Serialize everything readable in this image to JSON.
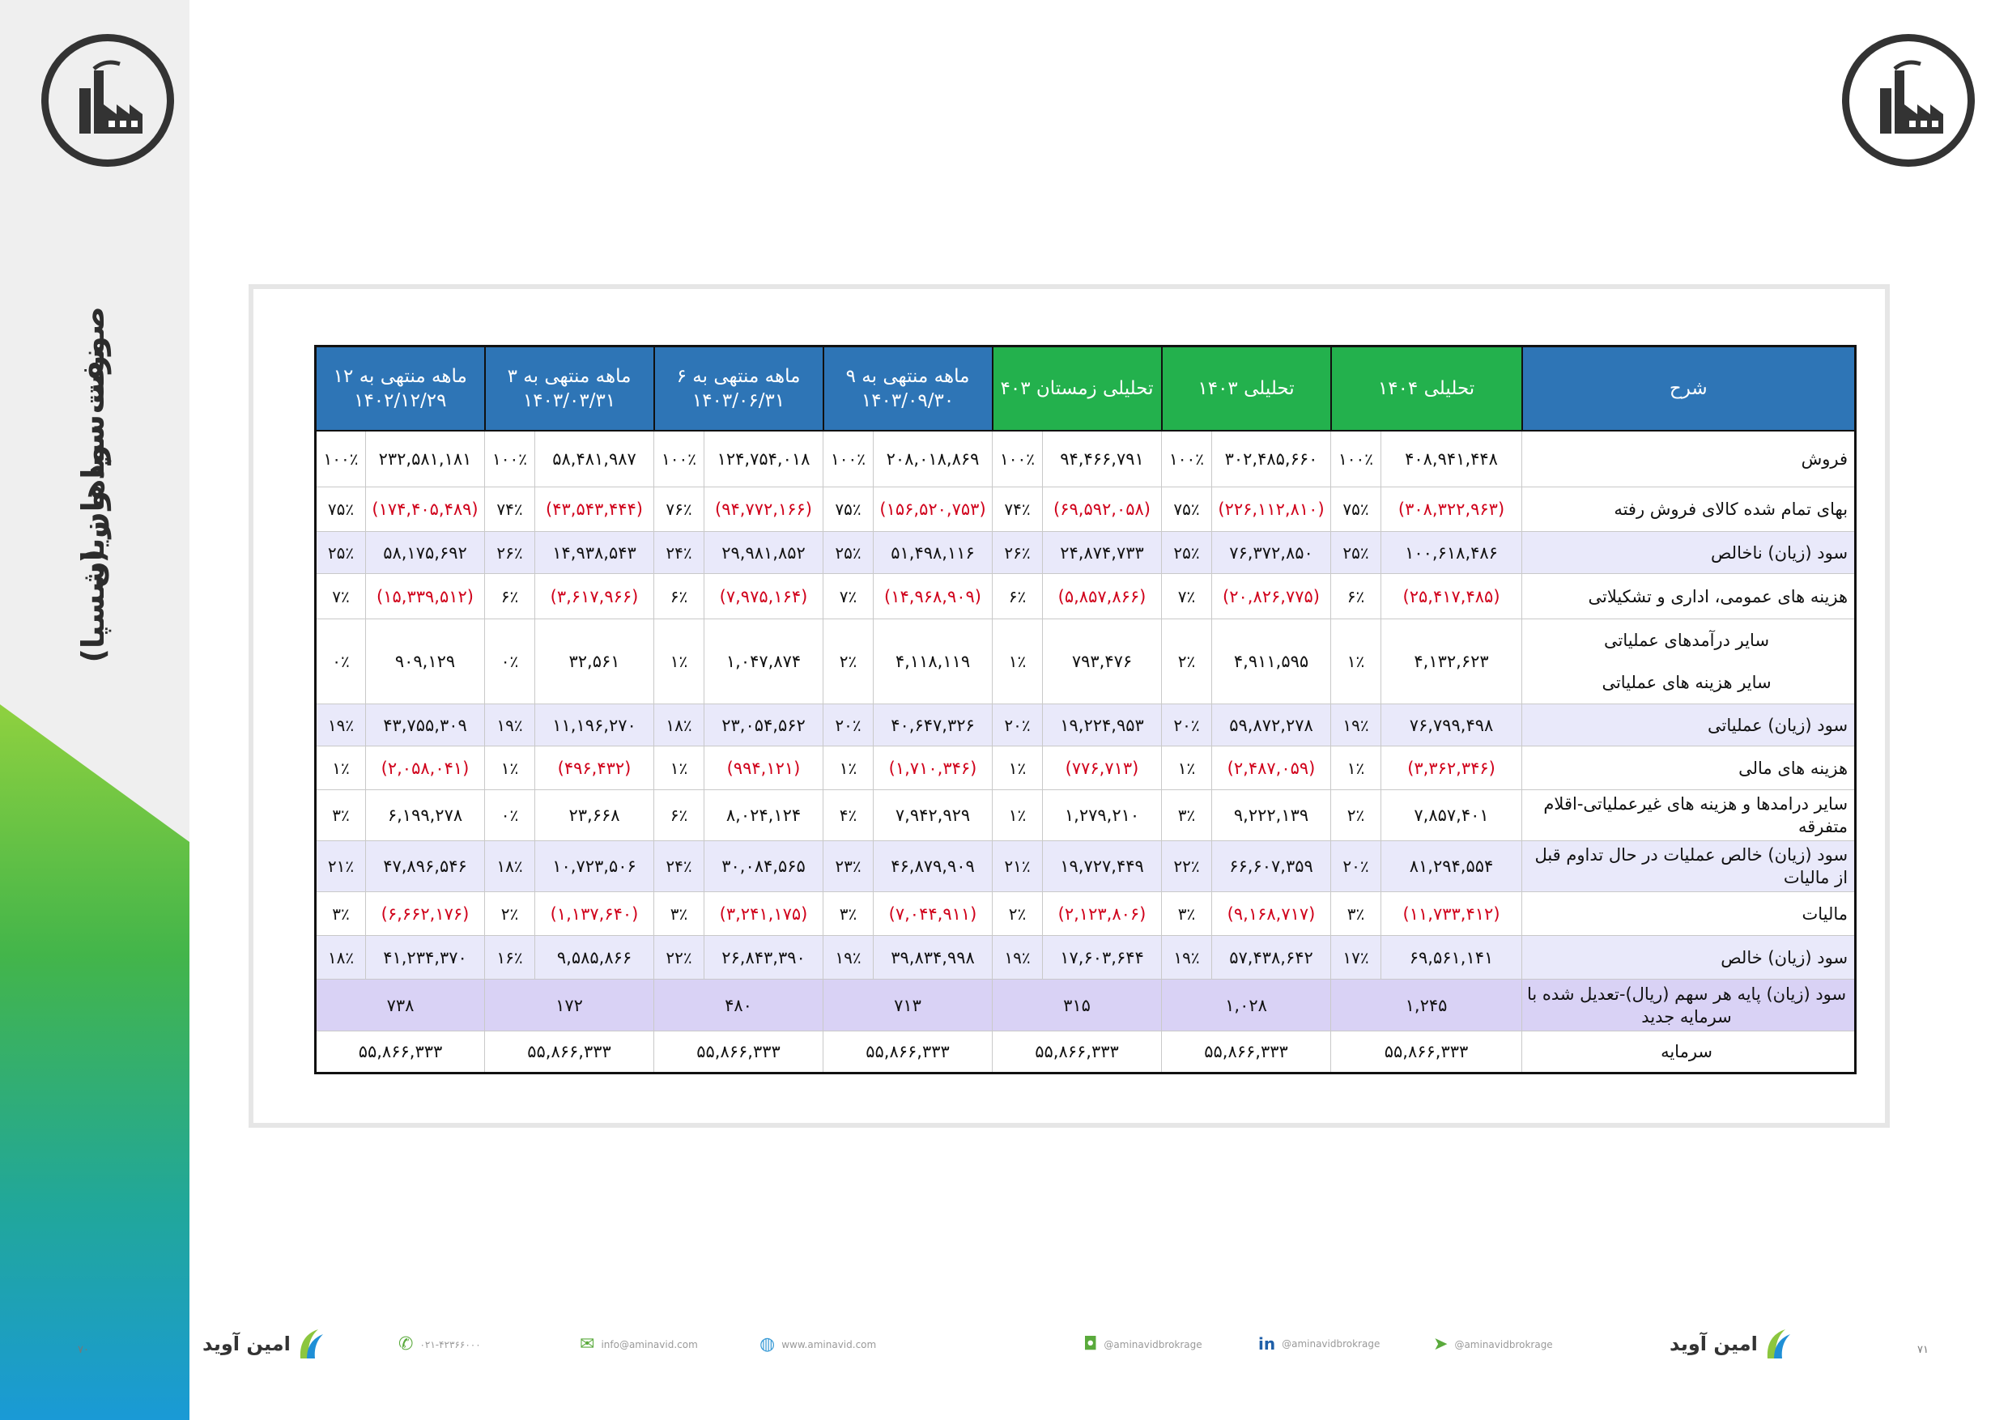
{
  "sidebar": {
    "title_line1": "صورت سود و زیان",
    "title_line2": "نفت سپاهان (شسپا)"
  },
  "colors": {
    "blue_header": "#2e75b6",
    "green_header": "#23b14d",
    "negative": "#d0021b"
  },
  "table": {
    "headers": {
      "desc": "شرح",
      "c1": "تحلیلی ۱۴۰۴",
      "c2": "تحلیلی ۱۴۰۳",
      "c3": "تحلیلی زمستان ۴۰۳",
      "c4": "۹ ماهه منتهی به ۱۴۰۳/۰۹/۳۰",
      "c5": "۶ ماهه منتهی به ۱۴۰۳/۰۶/۳۱",
      "c6": "۳ ماهه منتهی به ۱۴۰۳/۰۳/۳۱",
      "c7": "۱۲ ماهه منتهی به ۱۴۰۲/۱۲/۲۹"
    },
    "rows": {
      "r1": {
        "label": "فروش",
        "c1v": "۴۰۸,۹۴۱,۴۴۸",
        "c1p": "۱۰۰٪",
        "c2v": "۳۰۲,۴۸۵,۶۶۰",
        "c2p": "۱۰۰٪",
        "c3v": "۹۴,۴۶۶,۷۹۱",
        "c3p": "۱۰۰٪",
        "c4v": "۲۰۸,۰۱۸,۸۶۹",
        "c4p": "۱۰۰٪",
        "c5v": "۱۲۴,۷۵۴,۰۱۸",
        "c5p": "۱۰۰٪",
        "c6v": "۵۸,۴۸۱,۹۸۷",
        "c6p": "۱۰۰٪",
        "c7v": "۲۳۲,۵۸۱,۱۸۱",
        "c7p": "۱۰۰٪"
      },
      "r2": {
        "label": "بهای تمام شده کالای فروش رفته",
        "c1v": "(۳۰۸,۳۲۲,۹۶۳)",
        "c1p": "۷۵٪",
        "c2v": "(۲۲۶,۱۱۲,۸۱۰)",
        "c2p": "۷۵٪",
        "c3v": "(۶۹,۵۹۲,۰۵۸)",
        "c3p": "۷۴٪",
        "c4v": "(۱۵۶,۵۲۰,۷۵۳)",
        "c4p": "۷۵٪",
        "c5v": "(۹۴,۷۷۲,۱۶۶)",
        "c5p": "۷۶٪",
        "c6v": "(۴۳,۵۴۳,۴۴۴)",
        "c6p": "۷۴٪",
        "c7v": "(۱۷۴,۴۰۵,۴۸۹)",
        "c7p": "۷۵٪"
      },
      "r3": {
        "label": "سود (زیان) ناخالص",
        "c1v": "۱۰۰,۶۱۸,۴۸۶",
        "c1p": "۲۵٪",
        "c2v": "۷۶,۳۷۲,۸۵۰",
        "c2p": "۲۵٪",
        "c3v": "۲۴,۸۷۴,۷۳۳",
        "c3p": "۲۶٪",
        "c4v": "۵۱,۴۹۸,۱۱۶",
        "c4p": "۲۵٪",
        "c5v": "۲۹,۹۸۱,۸۵۲",
        "c5p": "۲۴٪",
        "c6v": "۱۴,۹۳۸,۵۴۳",
        "c6p": "۲۶٪",
        "c7v": "۵۸,۱۷۵,۶۹۲",
        "c7p": "۲۵٪"
      },
      "r4": {
        "label": "هزینه های عمومی، اداری و تشکیلاتی",
        "c1v": "(۲۵,۴۱۷,۴۸۵)",
        "c1p": "۶٪",
        "c2v": "(۲۰,۸۲۶,۷۷۵)",
        "c2p": "۷٪",
        "c3v": "(۵,۸۵۷,۸۶۶)",
        "c3p": "۶٪",
        "c4v": "(۱۴,۹۶۸,۹۰۹)",
        "c4p": "۷٪",
        "c5v": "(۷,۹۷۵,۱۶۴)",
        "c5p": "۶٪",
        "c6v": "(۳,۶۱۷,۹۶۶)",
        "c6p": "۶٪",
        "c7v": "(۱۵,۳۳۹,۵۱۲)",
        "c7p": "۷٪"
      },
      "r5": {
        "label1": "سایر درآمدهای عملیاتی",
        "label2": "سایر هزینه های عملیاتی",
        "c1v": "۴,۱۳۲,۶۲۳",
        "c1p": "۱٪",
        "c2v": "۴,۹۱۱,۵۹۵",
        "c2p": "۲٪",
        "c3v": "۷۹۳,۴۷۶",
        "c3p": "۱٪",
        "c4v": "۴,۱۱۸,۱۱۹",
        "c4p": "۲٪",
        "c5v": "۱,۰۴۷,۸۷۴",
        "c5p": "۱٪",
        "c6v": "۳۲,۵۶۱",
        "c6p": "۰٪",
        "c7v": "۹۰۹,۱۲۹",
        "c7p": "۰٪"
      },
      "r6": {
        "label": "سود (زیان) عملیاتی",
        "c1v": "۷۶,۷۹۹,۴۹۸",
        "c1p": "۱۹٪",
        "c2v": "۵۹,۸۷۲,۲۷۸",
        "c2p": "۲۰٪",
        "c3v": "۱۹,۲۲۴,۹۵۳",
        "c3p": "۲۰٪",
        "c4v": "۴۰,۶۴۷,۳۲۶",
        "c4p": "۲۰٪",
        "c5v": "۲۳,۰۵۴,۵۶۲",
        "c5p": "۱۸٪",
        "c6v": "۱۱,۱۹۶,۲۷۰",
        "c6p": "۱۹٪",
        "c7v": "۴۳,۷۵۵,۳۰۹",
        "c7p": "۱۹٪"
      },
      "r7": {
        "label": "هزینه های مالی",
        "c1v": "(۳,۳۶۲,۳۴۶)",
        "c1p": "۱٪",
        "c2v": "(۲,۴۸۷,۰۵۹)",
        "c2p": "۱٪",
        "c3v": "(۷۷۶,۷۱۳)",
        "c3p": "۱٪",
        "c4v": "(۱,۷۱۰,۳۴۶)",
        "c4p": "۱٪",
        "c5v": "(۹۹۴,۱۲۱)",
        "c5p": "۱٪",
        "c6v": "(۴۹۶,۴۳۲)",
        "c6p": "۱٪",
        "c7v": "(۲,۰۵۸,۰۴۱)",
        "c7p": "۱٪"
      },
      "r8": {
        "label": "سایر درامدها و هزینه های غیرعملیاتی-اقلام متفرقه",
        "c1v": "۷,۸۵۷,۴۰۱",
        "c1p": "۲٪",
        "c2v": "۹,۲۲۲,۱۳۹",
        "c2p": "۳٪",
        "c3v": "۱,۲۷۹,۲۱۰",
        "c3p": "۱٪",
        "c4v": "۷,۹۴۲,۹۲۹",
        "c4p": "۴٪",
        "c5v": "۸,۰۲۴,۱۲۴",
        "c5p": "۶٪",
        "c6v": "۲۳,۶۶۸",
        "c6p": "۰٪",
        "c7v": "۶,۱۹۹,۲۷۸",
        "c7p": "۳٪"
      },
      "r9": {
        "label": "سود (زیان) خالص عملیات در حال تداوم قبل از مالیات",
        "c1v": "۸۱,۲۹۴,۵۵۴",
        "c1p": "۲۰٪",
        "c2v": "۶۶,۶۰۷,۳۵۹",
        "c2p": "۲۲٪",
        "c3v": "۱۹,۷۲۷,۴۴۹",
        "c3p": "۲۱٪",
        "c4v": "۴۶,۸۷۹,۹۰۹",
        "c4p": "۲۳٪",
        "c5v": "۳۰,۰۸۴,۵۶۵",
        "c5p": "۲۴٪",
        "c6v": "۱۰,۷۲۳,۵۰۶",
        "c6p": "۱۸٪",
        "c7v": "۴۷,۸۹۶,۵۴۶",
        "c7p": "۲۱٪"
      },
      "r10": {
        "label": "مالیات",
        "c1v": "(۱۱,۷۳۳,۴۱۲)",
        "c1p": "۳٪",
        "c2v": "(۹,۱۶۸,۷۱۷)",
        "c2p": "۳٪",
        "c3v": "(۲,۱۲۳,۸۰۶)",
        "c3p": "۲٪",
        "c4v": "(۷,۰۴۴,۹۱۱)",
        "c4p": "۳٪",
        "c5v": "(۳,۲۴۱,۱۷۵)",
        "c5p": "۳٪",
        "c6v": "(۱,۱۳۷,۶۴۰)",
        "c6p": "۲٪",
        "c7v": "(۶,۶۶۲,۱۷۶)",
        "c7p": "۳٪"
      },
      "r11": {
        "label": "سود (زیان) خالص",
        "c1v": "۶۹,۵۶۱,۱۴۱",
        "c1p": "۱۷٪",
        "c2v": "۵۷,۴۳۸,۶۴۲",
        "c2p": "۱۹٪",
        "c3v": "۱۷,۶۰۳,۶۴۴",
        "c3p": "۱۹٪",
        "c4v": "۳۹,۸۳۴,۹۹۸",
        "c4p": "۱۹٪",
        "c5v": "۲۶,۸۴۳,۳۹۰",
        "c5p": "۲۲٪",
        "c6v": "۹,۵۸۵,۸۶۶",
        "c6p": "۱۶٪",
        "c7v": "۴۱,۲۳۴,۳۷۰",
        "c7p": "۱۸٪"
      },
      "r12": {
        "label": "سود (زیان) پایه هر سهم (ریال)-تعدیل شده با سرمایه جدید",
        "c1": "۱,۲۴۵",
        "c2": "۱,۰۲۸",
        "c3": "۳۱۵",
        "c4": "۷۱۳",
        "c5": "۴۸۰",
        "c6": "۱۷۲",
        "c7": "۷۳۸"
      },
      "r13": {
        "label": "سرمایه",
        "c1": "۵۵,۸۶۶,۳۳۳",
        "c2": "۵۵,۸۶۶,۳۳۳",
        "c3": "۵۵,۸۶۶,۳۳۳",
        "c4": "۵۵,۸۶۶,۳۳۳",
        "c5": "۵۵,۸۶۶,۳۳۳",
        "c6": "۵۵,۸۶۶,۳۳۳",
        "c7": "۵۵,۸۶۶,۳۳۳"
      }
    }
  },
  "footer": {
    "brand": "امین آوید",
    "phone": "۰۲۱-۴۲۳۶۶۰۰۰",
    "email": "info@aminavid.com",
    "website": "www.aminavid.com",
    "instagram": "@aminavidbrokrage",
    "linkedin": "@aminavidbrokrage",
    "telegram": "@aminavidbrokrage",
    "page_left": "۷۰",
    "page_right": "۷۱"
  }
}
